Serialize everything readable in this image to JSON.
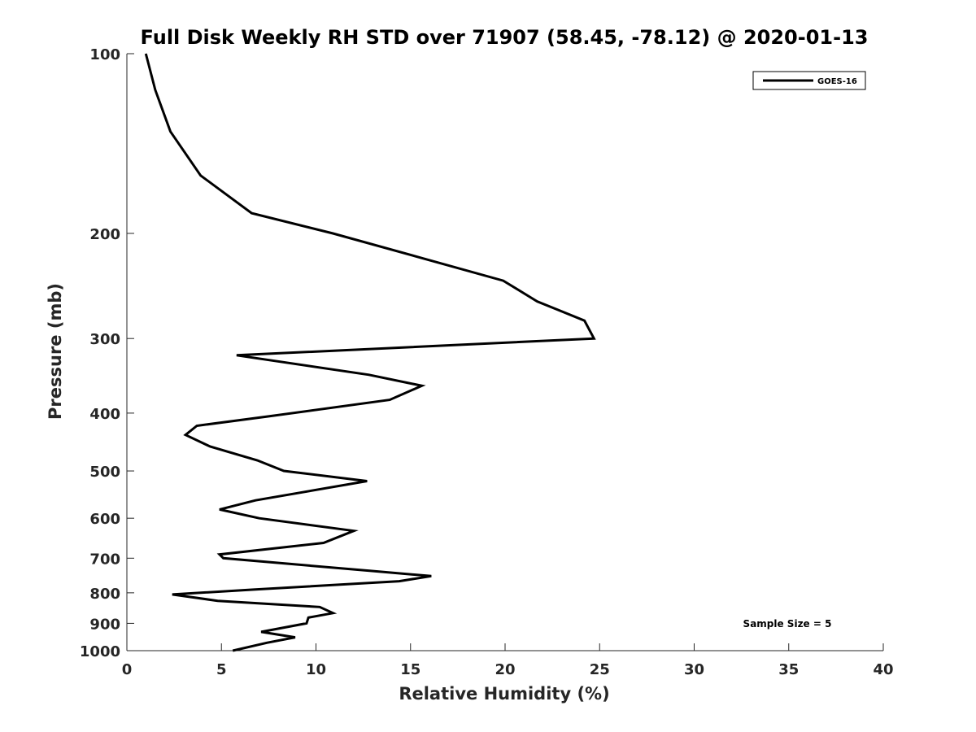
{
  "chart_data": {
    "type": "line",
    "title": "Full Disk Weekly RH STD over 71907 (58.45, -78.12) @ 2020-01-13",
    "xlabel": "Relative Humidity (%)",
    "ylabel": "Pressure (mb)",
    "xlim": [
      0,
      40
    ],
    "ylim": [
      100,
      1000
    ],
    "yscale": "log",
    "y_reversed": true,
    "grid": false,
    "x_ticks": [
      0,
      5,
      10,
      15,
      20,
      25,
      30,
      35,
      40
    ],
    "x_tick_labels": [
      "0",
      "5",
      "10",
      "15",
      "20",
      "25",
      "30",
      "35",
      "40"
    ],
    "y_ticks": [
      100,
      200,
      300,
      400,
      500,
      600,
      700,
      800,
      900,
      1000
    ],
    "y_tick_labels": [
      "100",
      "200",
      "300",
      "400",
      "500",
      "600",
      "700",
      "800",
      "900",
      "1000"
    ],
    "legend": {
      "position": "top-right",
      "entries": [
        "GOES-16"
      ]
    },
    "annotation": "Sample Size = 5",
    "series": [
      {
        "name": "GOES-16",
        "color": "#000000",
        "points": [
          [
            1.0,
            100
          ],
          [
            1.5,
            115
          ],
          [
            2.3,
            135
          ],
          [
            3.9,
            160
          ],
          [
            6.6,
            185
          ],
          [
            10.9,
            200
          ],
          [
            15.6,
            220
          ],
          [
            19.9,
            240
          ],
          [
            21.7,
            260
          ],
          [
            24.2,
            280
          ],
          [
            24.7,
            300
          ],
          [
            5.8,
            320
          ],
          [
            12.8,
            345
          ],
          [
            15.6,
            360
          ],
          [
            13.9,
            380
          ],
          [
            7.5,
            405
          ],
          [
            3.7,
            420
          ],
          [
            3.1,
            435
          ],
          [
            4.4,
            455
          ],
          [
            6.9,
            480
          ],
          [
            8.3,
            500
          ],
          [
            12.7,
            520
          ],
          [
            6.8,
            560
          ],
          [
            4.9,
            580
          ],
          [
            7.0,
            600
          ],
          [
            12.0,
            630
          ],
          [
            10.4,
            660
          ],
          [
            4.9,
            690
          ],
          [
            5.1,
            700
          ],
          [
            12.9,
            735
          ],
          [
            16.1,
            750
          ],
          [
            14.4,
            765
          ],
          [
            6.7,
            790
          ],
          [
            2.4,
            805
          ],
          [
            4.8,
            825
          ],
          [
            10.2,
            845
          ],
          [
            10.9,
            865
          ],
          [
            9.6,
            880
          ],
          [
            9.5,
            900
          ],
          [
            7.1,
            930
          ],
          [
            8.9,
            950
          ],
          [
            7.4,
            970
          ],
          [
            5.6,
            1000
          ]
        ]
      }
    ]
  }
}
